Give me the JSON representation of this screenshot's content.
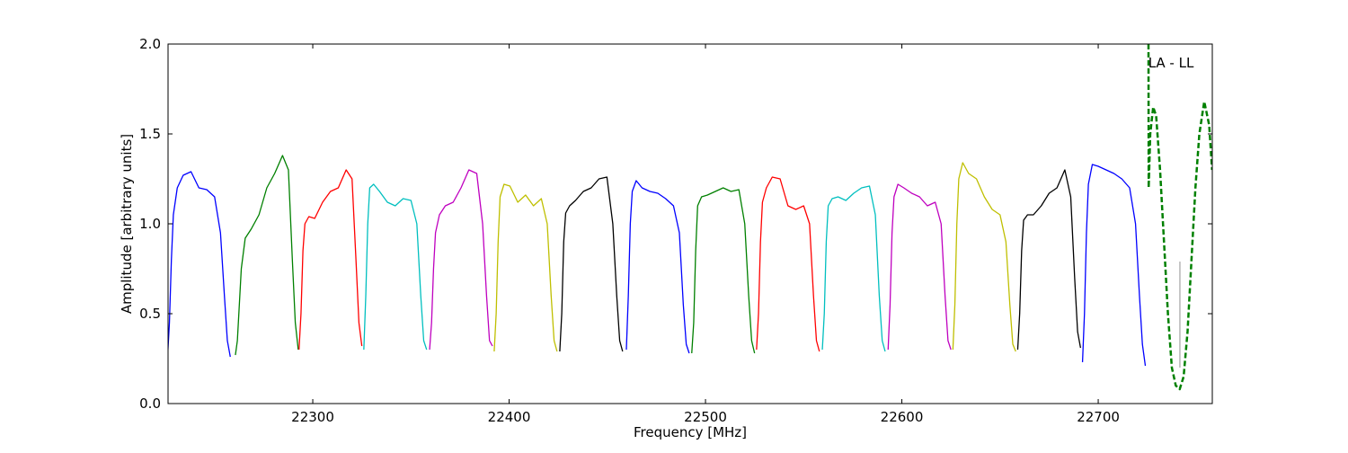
{
  "chart_data": {
    "type": "line",
    "xlabel": "Frequency [MHz]",
    "ylabel": "Amplitude [arbitrary units]",
    "annotation": "LA - LL",
    "xlim": [
      22226.3,
      22758.1
    ],
    "ylim": [
      0,
      2
    ],
    "xticks": [
      22300,
      22400,
      22500,
      22600,
      22700
    ],
    "yticks": [
      {
        "value": 0,
        "label": "0.0"
      },
      0.5,
      {
        "value": 1,
        "label": "1.0"
      },
      1.5,
      {
        "value": 2,
        "label": "2.0"
      }
    ],
    "grid": false,
    "series": [
      {
        "color": "#0000ff",
        "x": [
          22226,
          22227,
          22228,
          22229,
          22231,
          22234,
          22238,
          22242,
          22246,
          22250,
          22253,
          22255,
          22256.5,
          22258
        ],
        "values": [
          0.25,
          0.45,
          0.8,
          1.05,
          1.2,
          1.27,
          1.29,
          1.2,
          1.19,
          1.15,
          0.95,
          0.6,
          0.35,
          0.26
        ]
      },
      {
        "color": "#008000",
        "x": [
          22260.6,
          22261.6,
          22262.6,
          22263.6,
          22265.6,
          22268.6,
          22272.6,
          22276.6,
          22280.6,
          22284.6,
          22287.6,
          22289.6,
          22291.1,
          22292.6
        ],
        "values": [
          0.27,
          0.35,
          0.55,
          0.75,
          0.92,
          0.97,
          1.05,
          1.2,
          1.28,
          1.38,
          1.3,
          0.8,
          0.45,
          0.3
        ]
      },
      {
        "color": "#ff0000",
        "x": [
          22293,
          22294,
          22295,
          22296,
          22298,
          22301,
          22305,
          22309,
          22313,
          22317,
          22320,
          22322,
          22323.5,
          22325
        ],
        "values": [
          0.3,
          0.5,
          0.85,
          1.0,
          1.04,
          1.03,
          1.12,
          1.18,
          1.2,
          1.3,
          1.25,
          0.8,
          0.45,
          0.32
        ]
      },
      {
        "color": "#00bfbf",
        "x": [
          22326,
          22327,
          22328,
          22329,
          22331,
          22334,
          22338,
          22342,
          22346,
          22350,
          22353,
          22355,
          22356.5,
          22358
        ],
        "values": [
          0.3,
          0.6,
          1.0,
          1.2,
          1.22,
          1.18,
          1.12,
          1.1,
          1.14,
          1.13,
          1.0,
          0.6,
          0.35,
          0.3
        ]
      },
      {
        "color": "#bf00bf",
        "x": [
          22359.5,
          22360.5,
          22361.5,
          22362.5,
          22364.5,
          22367.5,
          22371.5,
          22375.5,
          22379.5,
          22383.5,
          22386.5,
          22388.5,
          22390,
          22391.5
        ],
        "values": [
          0.3,
          0.45,
          0.75,
          0.95,
          1.05,
          1.1,
          1.12,
          1.2,
          1.3,
          1.28,
          1.0,
          0.6,
          0.35,
          0.32
        ]
      },
      {
        "color": "#bfbf00",
        "x": [
          22392.4,
          22393.4,
          22394.4,
          22395.4,
          22397.4,
          22400.4,
          22404.4,
          22408.4,
          22412.4,
          22416.4,
          22419.4,
          22421.4,
          22422.9,
          22424.4
        ],
        "values": [
          0.29,
          0.5,
          0.9,
          1.15,
          1.22,
          1.21,
          1.12,
          1.16,
          1.1,
          1.14,
          1.0,
          0.6,
          0.35,
          0.29
        ]
      },
      {
        "color": "#000000",
        "x": [
          22425.8,
          22426.8,
          22427.8,
          22428.8,
          22430.8,
          22433.8,
          22437.8,
          22441.8,
          22445.8,
          22449.8,
          22452.8,
          22454.8,
          22456.3,
          22457.8
        ],
        "values": [
          0.29,
          0.5,
          0.9,
          1.06,
          1.1,
          1.13,
          1.18,
          1.2,
          1.25,
          1.26,
          1.0,
          0.6,
          0.35,
          0.29
        ]
      },
      {
        "color": "#0000ff",
        "x": [
          22459.7,
          22460.7,
          22461.7,
          22462.7,
          22464.7,
          22467.7,
          22471.7,
          22475.7,
          22479.7,
          22483.7,
          22486.7,
          22488.7,
          22490.2,
          22491.7
        ],
        "values": [
          0.3,
          0.6,
          1.0,
          1.18,
          1.24,
          1.2,
          1.18,
          1.17,
          1.14,
          1.1,
          0.95,
          0.55,
          0.33,
          0.28
        ]
      },
      {
        "color": "#008000",
        "x": [
          22493,
          22494,
          22495,
          22496,
          22498,
          22501,
          22505,
          22509,
          22513,
          22517,
          22520,
          22522,
          22523.5,
          22525
        ],
        "values": [
          0.28,
          0.45,
          0.85,
          1.1,
          1.15,
          1.16,
          1.18,
          1.2,
          1.18,
          1.19,
          1.0,
          0.6,
          0.35,
          0.28
        ]
      },
      {
        "color": "#ff0000",
        "x": [
          22526,
          22527,
          22528,
          22529,
          22531,
          22534,
          22538,
          22542,
          22546,
          22550,
          22553,
          22555,
          22556.5,
          22558
        ],
        "values": [
          0.3,
          0.5,
          0.9,
          1.12,
          1.2,
          1.26,
          1.25,
          1.1,
          1.08,
          1.1,
          1.0,
          0.6,
          0.35,
          0.29
        ]
      },
      {
        "color": "#00bfbf",
        "x": [
          22559.5,
          22560.5,
          22561.5,
          22562.5,
          22564.5,
          22567.5,
          22571.5,
          22575.5,
          22579.5,
          22583.5,
          22586.5,
          22588.5,
          22590,
          22591.5
        ],
        "values": [
          0.3,
          0.5,
          0.9,
          1.1,
          1.14,
          1.15,
          1.13,
          1.17,
          1.2,
          1.21,
          1.05,
          0.6,
          0.35,
          0.29
        ]
      },
      {
        "color": "#bf00bf",
        "x": [
          22593,
          22594,
          22595,
          22596,
          22598,
          22601,
          22605,
          22609,
          22613,
          22617,
          22620,
          22622,
          22623.5,
          22625
        ],
        "values": [
          0.3,
          0.55,
          0.95,
          1.15,
          1.22,
          1.2,
          1.17,
          1.15,
          1.1,
          1.12,
          1.0,
          0.6,
          0.35,
          0.3
        ]
      },
      {
        "color": "#bfbf00",
        "x": [
          22626,
          22627,
          22628,
          22629,
          22631,
          22634,
          22638,
          22642,
          22646,
          22650,
          22653,
          22655,
          22656.5,
          22658
        ],
        "values": [
          0.3,
          0.55,
          1.0,
          1.25,
          1.34,
          1.28,
          1.25,
          1.15,
          1.08,
          1.05,
          0.9,
          0.55,
          0.33,
          0.29
        ]
      },
      {
        "color": "#000000",
        "x": [
          22659,
          22660,
          22661,
          22662,
          22664,
          22667,
          22671,
          22675,
          22679,
          22683,
          22686,
          22688,
          22689.5,
          22691
        ],
        "values": [
          0.3,
          0.5,
          0.85,
          1.02,
          1.05,
          1.05,
          1.1,
          1.17,
          1.2,
          1.3,
          1.15,
          0.7,
          0.4,
          0.31
        ]
      },
      {
        "color": "#0000ff",
        "x": [
          22692,
          22693,
          22694,
          22695,
          22697,
          22700,
          22704,
          22708,
          22712,
          22716,
          22719,
          22721,
          22722.5,
          22724
        ],
        "values": [
          0.23,
          0.5,
          0.95,
          1.22,
          1.33,
          1.32,
          1.3,
          1.28,
          1.25,
          1.2,
          1.0,
          0.6,
          0.33,
          0.21
        ]
      },
      {
        "color": "#008000",
        "linestyle": "dashed",
        "linewidth": 2.5,
        "x": [
          22725.6,
          22725.7,
          22726.5,
          22728,
          22729.5,
          22731.5,
          22733.5,
          22735.5,
          22737.5,
          22739.5,
          22741.5,
          22743.5,
          22745.5,
          22747.5,
          22749.5,
          22751.5,
          22754,
          22756.5,
          22758
        ],
        "values": [
          2.0,
          1.2,
          1.5,
          1.65,
          1.6,
          1.3,
          0.9,
          0.5,
          0.2,
          0.1,
          0.08,
          0.15,
          0.4,
          0.8,
          1.2,
          1.5,
          1.68,
          1.55,
          1.3
        ]
      },
      {
        "color": "#aaaaaa",
        "x": [
          22741.6,
          22741.6
        ],
        "values": [
          0.79,
          0.2
        ]
      }
    ]
  }
}
